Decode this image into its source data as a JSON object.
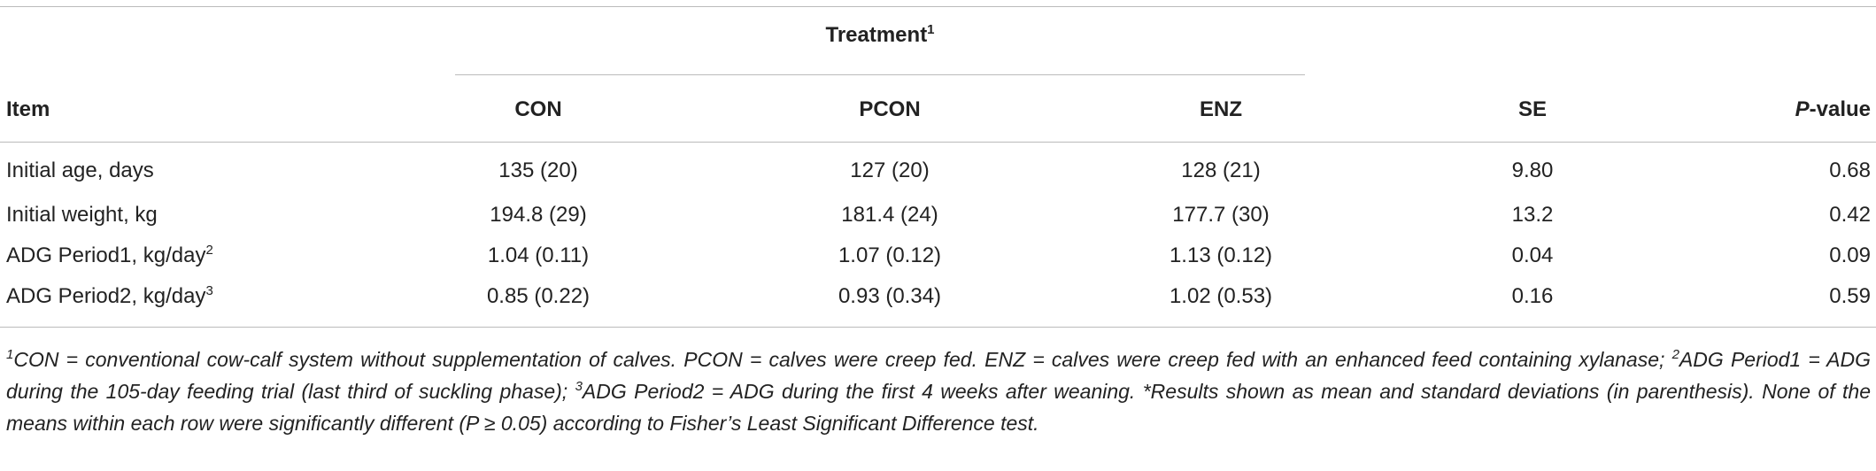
{
  "table": {
    "group_header": {
      "text": "Treatment",
      "sup": "1"
    },
    "columns": [
      "Item",
      "CON",
      "PCON",
      "ENZ",
      "SE",
      {
        "italic": "P",
        "text": "-value"
      }
    ],
    "rows": [
      {
        "label": "Initial age, days",
        "cells": [
          "135 (20)",
          "127 (20)",
          "128 (21)",
          "9.80",
          "0.68"
        ]
      },
      {
        "label": "Initial weight, kg",
        "cells": [
          "194.8 (29)",
          "181.4 (24)",
          "177.7 (30)",
          "13.2",
          "0.42"
        ]
      },
      {
        "label": "ADG Period1, kg/day",
        "sup": "2",
        "cells": [
          "1.04 (0.11)",
          "1.07 (0.12)",
          "1.13 (0.12)",
          "0.04",
          "0.09"
        ]
      },
      {
        "label": "ADG Period2, kg/day",
        "sup": "3",
        "cells": [
          "0.85 (0.22)",
          "0.93 (0.34)",
          "1.02 (0.53)",
          "0.16",
          "0.59"
        ]
      }
    ]
  },
  "footnote": [
    {
      "sup": "1"
    },
    {
      "text": "CON = conventional cow-calf system without supplementation of calves. PCON = calves were creep fed. ENZ = calves were creep fed with an enhanced feed containing xylanase; "
    },
    {
      "sup": "2"
    },
    {
      "text": "ADG Period1 = ADG during the 105-day feeding trial (last third of suckling phase); "
    },
    {
      "sup": "3"
    },
    {
      "text": "ADG Period2 = ADG during the first 4 weeks after weaning. *Results shown as mean and standard deviations (in parenthesis). None of the means within each row were significantly different (P ≥ 0.05) according to Fisher’s Least Significant Difference test."
    }
  ]
}
